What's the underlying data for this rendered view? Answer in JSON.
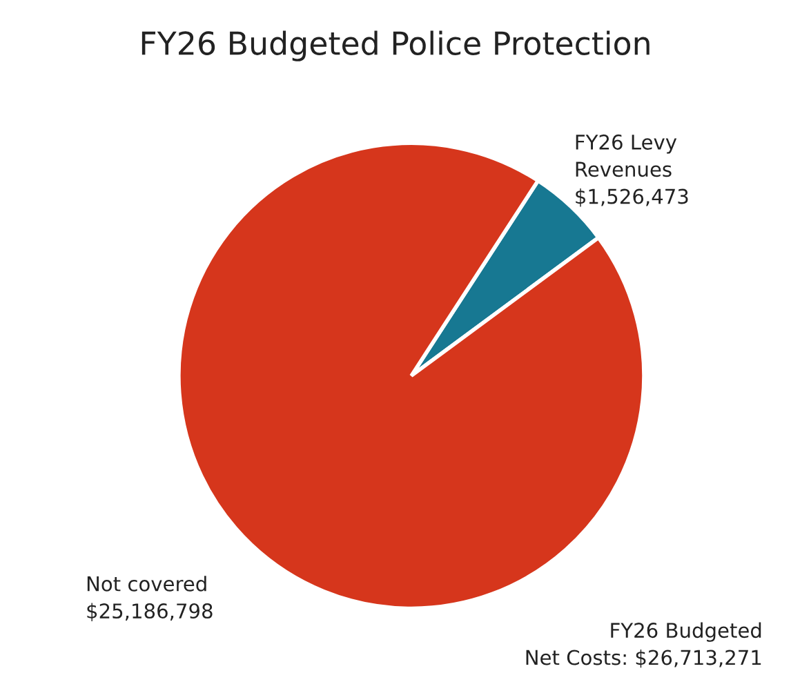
{
  "chart_data": {
    "type": "pie",
    "title": "FY26 Budgeted Police Protection",
    "categories": [
      "FY26 Levy\nRevenues",
      "Not covered"
    ],
    "values": [
      1526473,
      25186798
    ],
    "value_labels": [
      "$1,526,473",
      "$25,186,798"
    ],
    "colors": [
      "#177892",
      "#d6361c"
    ],
    "annotations": [
      "FY26 Budgeted\nNet Costs: $26,713,271"
    ]
  }
}
